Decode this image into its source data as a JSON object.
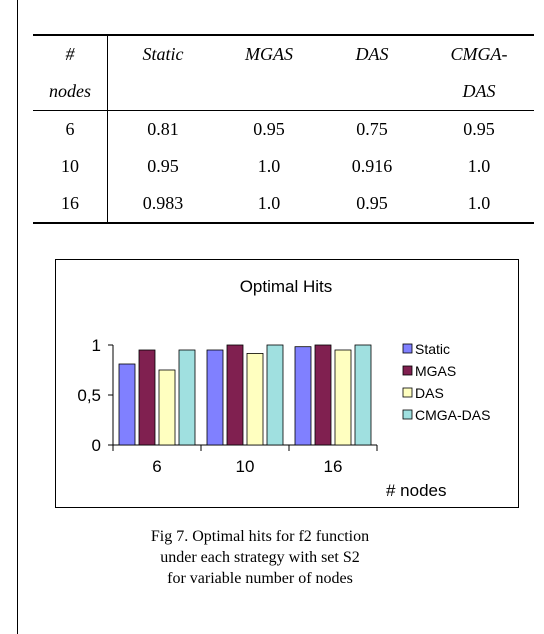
{
  "table": {
    "header_row1": [
      "#",
      "Static",
      "MGAS",
      "DAS",
      "CMGA-"
    ],
    "header_row2": [
      "nodes",
      "",
      "",
      "",
      "DAS"
    ],
    "rows": [
      [
        "6",
        "0.81",
        "0.95",
        "0.75",
        "0.95"
      ],
      [
        "10",
        "0.95",
        "1.0",
        "0.916",
        "1.0"
      ],
      [
        "16",
        "0.983",
        "1.0",
        "0.95",
        "1.0"
      ]
    ]
  },
  "chart_data": {
    "type": "bar",
    "title": "Optimal Hits",
    "xlabel": "# nodes",
    "ylabel": "",
    "categories": [
      "6",
      "10",
      "16"
    ],
    "ylim": [
      0,
      1
    ],
    "yticks": [
      "0",
      "0,5",
      "1"
    ],
    "grid": false,
    "legend": "right",
    "series": [
      {
        "name": "Static",
        "color": "#8080ff",
        "values": [
          0.81,
          0.95,
          0.983
        ]
      },
      {
        "name": "MGAS",
        "color": "#802050",
        "values": [
          0.95,
          1.0,
          1.0
        ]
      },
      {
        "name": "DAS",
        "color": "#ffffc0",
        "values": [
          0.75,
          0.916,
          0.95
        ]
      },
      {
        "name": "CMGA-DAS",
        "color": "#a0e0e0",
        "values": [
          0.95,
          1.0,
          1.0
        ]
      }
    ]
  },
  "caption": {
    "line1": "Fig 7. Optimal hits for f2 function",
    "line2": "under each strategy with set S2",
    "line3": "for variable number of nodes"
  }
}
